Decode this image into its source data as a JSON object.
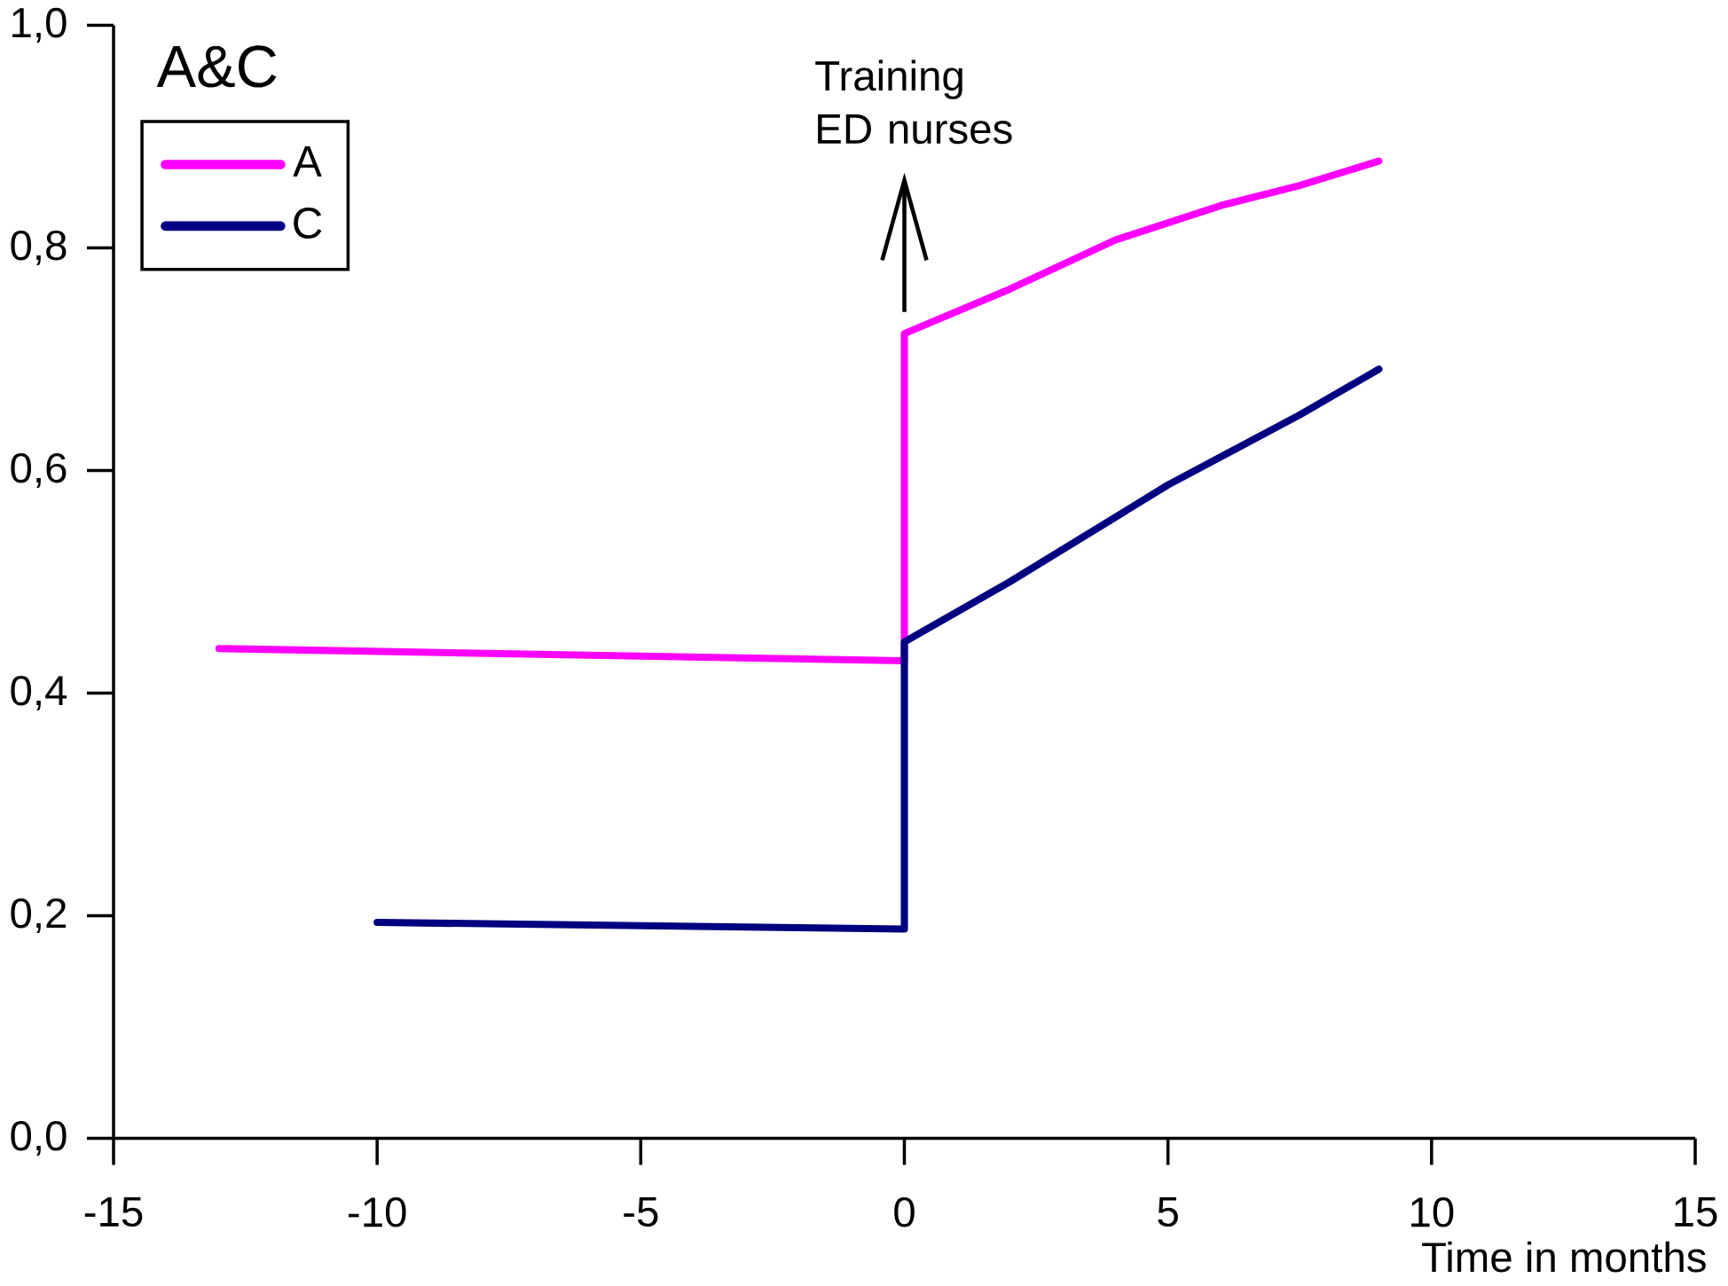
{
  "chart_data": {
    "type": "line",
    "title": "A&C",
    "xlabel": "Time in months",
    "xlim": [
      -15,
      15
    ],
    "ylim": [
      0,
      1.0
    ],
    "xticks": [
      -15,
      -10,
      -5,
      0,
      5,
      10,
      15
    ],
    "yticks": [
      {
        "value": 0,
        "label": "0,0"
      },
      {
        "value": 0.2,
        "label": "0,2"
      },
      {
        "value": 0.4,
        "label": "0,4"
      },
      {
        "value": 0.6,
        "label": "0,6"
      },
      {
        "value": 0.8,
        "label": "0,8"
      },
      {
        "value": 1.0,
        "label": "1,0"
      }
    ],
    "series": [
      {
        "name": "A",
        "color": "#ff00ff",
        "x": [
          -13,
          0,
          0,
          2,
          4,
          6,
          7.5,
          9
        ],
        "values": [
          0.44,
          0.429,
          0.723,
          0.763,
          0.807,
          0.838,
          0.856,
          0.878
        ]
      },
      {
        "name": "C",
        "color": "#000080",
        "x": [
          -10,
          0,
          0,
          2,
          5,
          7.5,
          9
        ],
        "values": [
          0.194,
          0.188,
          0.446,
          0.5,
          0.587,
          0.65,
          0.691
        ]
      }
    ],
    "ref_lines": [
      {
        "axis": "x",
        "value": 0,
        "label": "Training ED nurses"
      }
    ],
    "legend": "top left",
    "grid": false,
    "marker": "none",
    "line_style": "solid"
  }
}
